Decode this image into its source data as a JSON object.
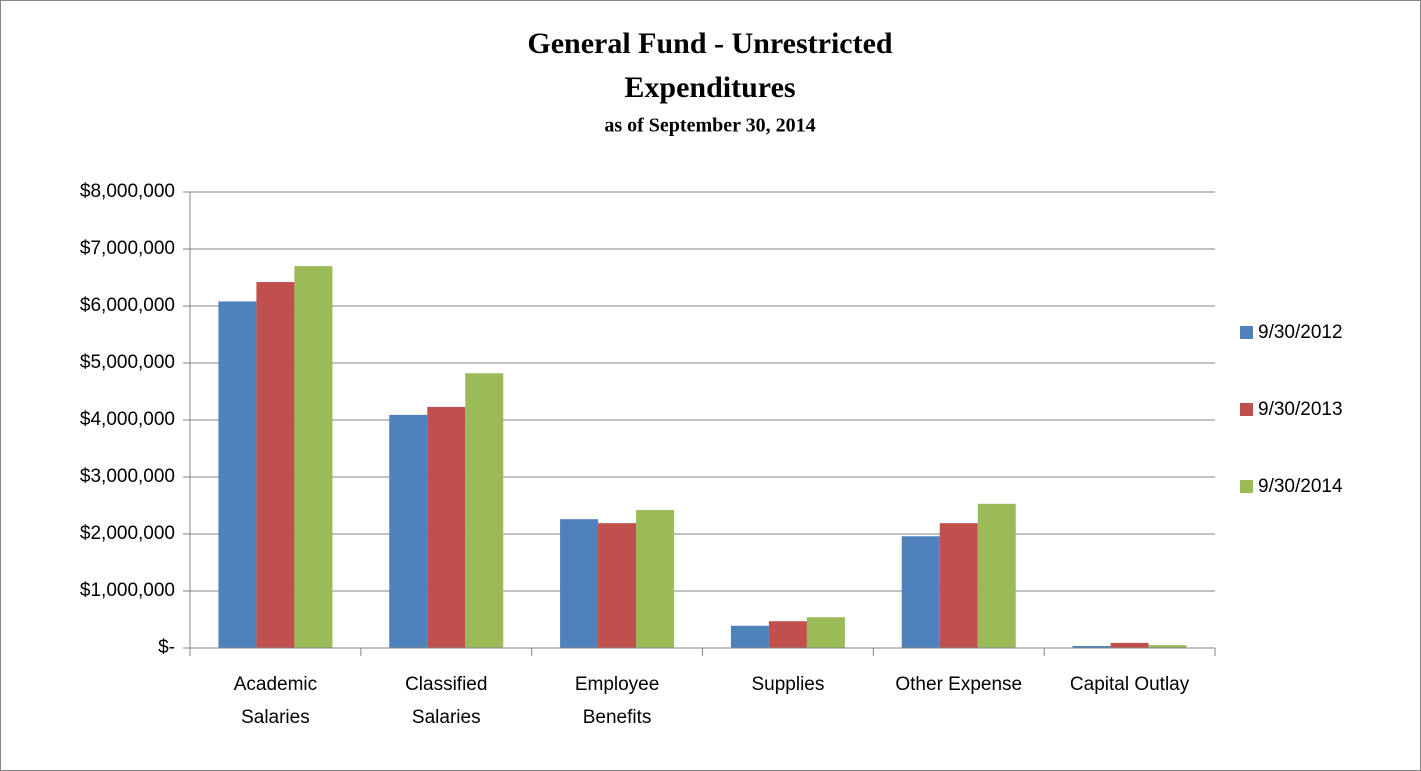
{
  "chart_data": {
    "type": "bar",
    "title": [
      "General Fund - Unrestricted",
      "Expenditures"
    ],
    "subtitle": "as of September 30, 2014",
    "categories": [
      [
        "Academic",
        "Salaries"
      ],
      [
        "Classified",
        "Salaries"
      ],
      [
        "Employee",
        "Benefits"
      ],
      [
        "Supplies"
      ],
      [
        "Other Expense"
      ],
      [
        "Capital Outlay"
      ]
    ],
    "series": [
      {
        "name": "9/30/2012",
        "color": "#4f81bd",
        "values": [
          6080000,
          4090000,
          2260000,
          390000,
          1960000,
          35000
        ]
      },
      {
        "name": "9/30/2013",
        "color": "#c0504d",
        "values": [
          6420000,
          4230000,
          2190000,
          470000,
          2190000,
          90000
        ]
      },
      {
        "name": "9/30/2014",
        "color": "#9bbb59",
        "values": [
          6700000,
          4820000,
          2420000,
          540000,
          2530000,
          50000
        ]
      }
    ],
    "ylim": [
      0,
      8000000
    ],
    "yticks": [
      {
        "value": 0,
        "label": "$-"
      },
      {
        "value": 1000000,
        "label": "$1,000,000"
      },
      {
        "value": 2000000,
        "label": "$2,000,000"
      },
      {
        "value": 3000000,
        "label": "$3,000,000"
      },
      {
        "value": 4000000,
        "label": "$4,000,000"
      },
      {
        "value": 5000000,
        "label": "$5,000,000"
      },
      {
        "value": 6000000,
        "label": "$6,000,000"
      },
      {
        "value": 7000000,
        "label": "$7,000,000"
      },
      {
        "value": 8000000,
        "label": "$8,000,000"
      }
    ],
    "grid": true,
    "legend": "right"
  }
}
